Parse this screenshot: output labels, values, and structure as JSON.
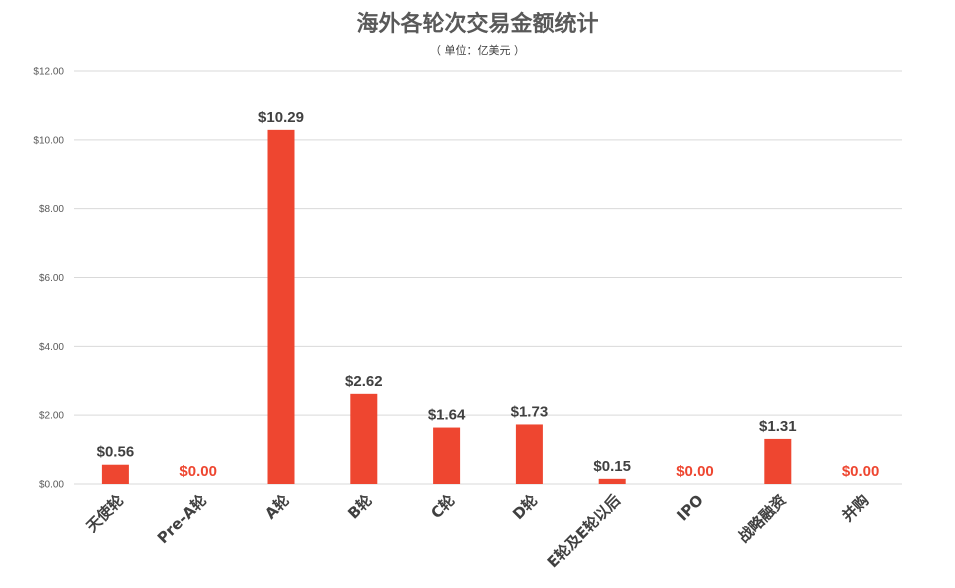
{
  "chart_data": {
    "type": "bar",
    "title": "海外各轮次交易金额统计",
    "subtitle": "（ 单位：亿美元 ）",
    "categories": [
      "天使轮",
      "Pre-A轮",
      "A轮",
      "B轮",
      "C轮",
      "D轮",
      "E轮及E轮以后",
      "IPO",
      "战略融资",
      "并购"
    ],
    "values": [
      0.56,
      0.0,
      10.29,
      2.62,
      1.64,
      1.73,
      0.15,
      0.0,
      1.31,
      0.0
    ],
    "data_labels": [
      "$0.56",
      "$0.00",
      "$10.29",
      "$2.62",
      "$1.64",
      "$1.73",
      "$0.15",
      "$0.00",
      "$1.31",
      "$0.00"
    ],
    "y_ticks": [
      "$0.00",
      "$2.00",
      "$4.00",
      "$6.00",
      "$8.00",
      "$10.00",
      "$12.00"
    ],
    "ylim": [
      0,
      12
    ],
    "grid": true,
    "legend": "none",
    "xlabel": "",
    "ylabel": "",
    "colors": {
      "bar": "#EE4630",
      "zero_label": "#EE4630",
      "label": "#404040",
      "grid": "#D9D9D9",
      "title": "#595959"
    }
  }
}
